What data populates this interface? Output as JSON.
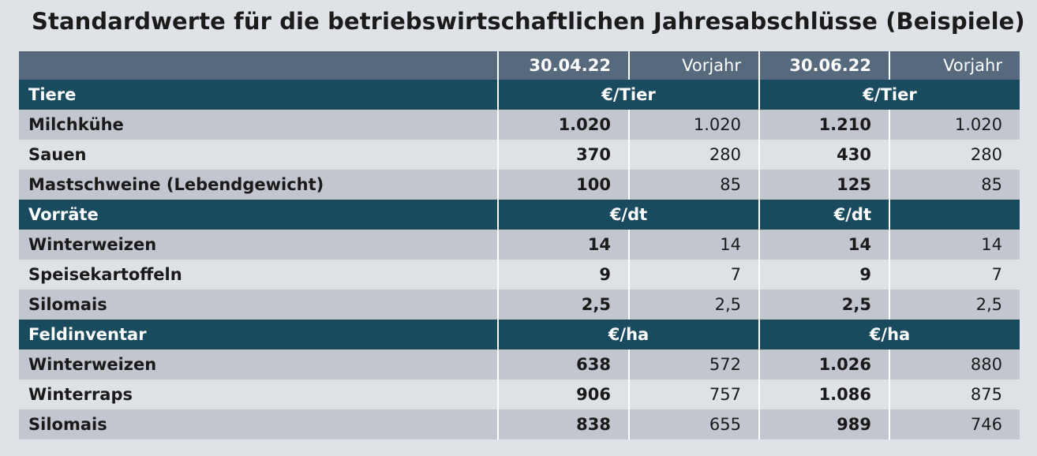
{
  "title": "Standardwerte für die betriebswirtschaftlichen Jahresabschlüsse (Beispiele)",
  "header": {
    "col1": "30.04.22",
    "col2": "Vorjahr",
    "col3": "30.06.22",
    "col4": "Vorjahr"
  },
  "sections": [
    {
      "label": "Tiere",
      "unit_a": "€/Tier",
      "unit_b": "€/Tier",
      "rows": [
        {
          "label": "Milchkühe",
          "v1": "1.020",
          "v2": "1.020",
          "v3": "1.210",
          "v4": "1.020"
        },
        {
          "label": "Sauen",
          "v1": "370",
          "v2": "280",
          "v3": "430",
          "v4": "280"
        },
        {
          "label": "Mastschweine (Lebendgewicht)",
          "v1": "100",
          "v2": "85",
          "v3": "125",
          "v4": "85"
        }
      ]
    },
    {
      "label": "Vorräte",
      "unit_a": "€/dt",
      "unit_b": "€/dt",
      "rows": [
        {
          "label": "Winterweizen",
          "v1": "14",
          "v2": "14",
          "v3": "14",
          "v4": "14"
        },
        {
          "label": "Speisekartoffeln",
          "v1": "9",
          "v2": "7",
          "v3": "9",
          "v4": "7"
        },
        {
          "label": "Silomais",
          "v1": "2,5",
          "v2": "2,5",
          "v3": "2,5",
          "v4": "2,5"
        }
      ]
    },
    {
      "label": "Feldinventar",
      "unit_a": "€/ha",
      "unit_b": "€/ha",
      "rows": [
        {
          "label": "Winterweizen",
          "v1": "638",
          "v2": "572",
          "v3": "1.026",
          "v4": "880"
        },
        {
          "label": "Winterraps",
          "v1": "906",
          "v2": "757",
          "v3": "1.086",
          "v4": "875"
        },
        {
          "label": "Silomais",
          "v1": "838",
          "v2": "655",
          "v3": "989",
          "v4": "746"
        }
      ]
    }
  ],
  "colors": {
    "background": "#dfe2e7",
    "header": "#576a7d",
    "section": "#1a4a5e",
    "row_dark": "#c3c6cf",
    "row_light": "#dee1e6"
  }
}
